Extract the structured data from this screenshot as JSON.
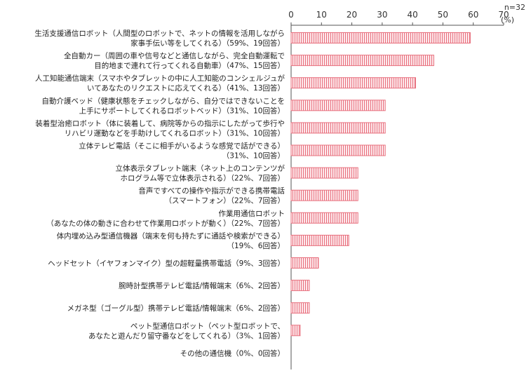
{
  "chart_data": {
    "type": "bar",
    "orientation": "horizontal",
    "sample_note": "n=32",
    "unit": "(%)",
    "x_ticks": [
      "0",
      "10",
      "20",
      "30",
      "40",
      "50",
      "60",
      "70"
    ],
    "xlim": [
      0,
      70
    ],
    "grid": false,
    "bar_color": "#e8707e",
    "bar_fill": "#fbd9de",
    "categories": [
      [
        "生活支援通信ロボット（人間型のロボットで、ネットの情報を活用しながら",
        "家事手伝い等をしてくれる）（59%、19回答）"
      ],
      [
        "全自動カー（周囲の車や信号などと通信しながら、完全自動運転で",
        "目的地まで連れて行ってくれる自動車）（47%、15回答）"
      ],
      [
        "人工知能通信端末（スマホやタブレットの中に人工知能のコンシェルジュが",
        "いてあなたのリクエストに応えてくれる）（41%、13回答）"
      ],
      [
        "自動介護ベッド（健康状態をチェックしながら、自分ではできないことを",
        "上手にサポートしてくれるロボットベッド）（31%、10回答）"
      ],
      [
        "装着型治癒ロボット（体に装着して、病院等からの指示にしたがって歩行や",
        "リハビリ運動などを手助けしてくれるロボット）（31%、10回答）"
      ],
      [
        "立体テレビ電話（そこに相手がいるような感覚で話ができる）",
        "（31%、10回答）"
      ],
      [
        "立体表示タブレット端末（ネット上のコンテンツが",
        "ホログラム等で立体表示される）（22%、7回答）"
      ],
      [
        "音声ですべての操作や指示ができる携帯電話",
        "（スマートフォン）（22%、7回答）"
      ],
      [
        "作業用通信ロボット",
        "（あなたの体の動きに合わせて作業用ロボットが動く）（22%、7回答）"
      ],
      [
        "体内埋め込み型通信機器（端末を何も持たずに通話や検索ができる）",
        "（19%、6回答）"
      ],
      [
        "ヘッドセット（イヤフォンマイク）型の超軽量携帯電話（9%、3回答）"
      ],
      [
        "腕時計型携帯テレビ電話/情報端末（6%、2回答）"
      ],
      [
        "メガネ型（ゴーグル型）携帯テレビ電話/情報端末（6%、2回答）"
      ],
      [
        "ペット型通信ロボット（ペット型ロボットで、",
        "あなたと遊んだり留守番などをしてくれる）（3%、1回答）"
      ],
      [
        "その他の通信機（0%、0回答）"
      ]
    ],
    "values": [
      59,
      47,
      41,
      31,
      31,
      31,
      22,
      22,
      22,
      19,
      9,
      6,
      6,
      3,
      0
    ]
  }
}
